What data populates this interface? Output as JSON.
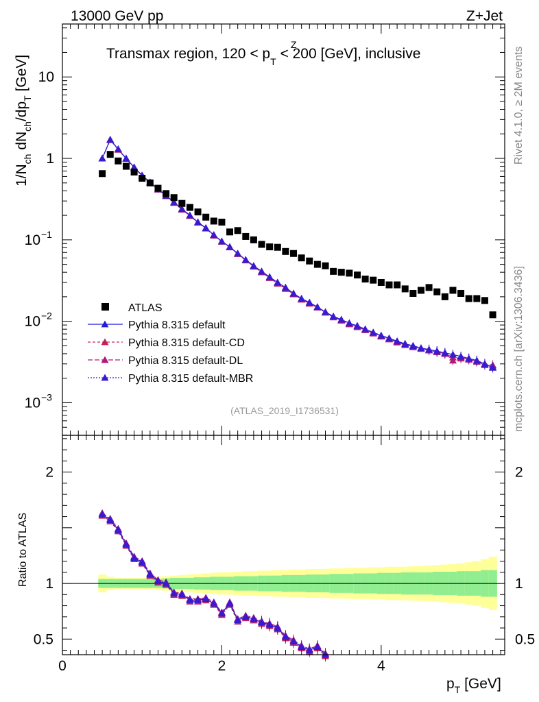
{
  "header": {
    "left": "13000 GeV pp",
    "right": "Z+Jet",
    "title": "Transmax region, 120 < p",
    "title_sup": "Z",
    "title_sub": "T",
    "title_end": " < 200 [GeV], inclusive",
    "analysis_id": "(ATLAS_2019_I1736531)"
  },
  "side_text": {
    "rivet": "Rivet 4.1.0, ≥ 2M events",
    "mcplots": "mcplots.cern.ch [arXiv:1306.3436]"
  },
  "axes": {
    "main_ylabel": "1/N",
    "main_ylabel_sub1": "ch",
    "main_ylabel_mid": " dN",
    "main_ylabel_sub2": "ch",
    "main_ylabel_end": "/dp",
    "main_ylabel_sub3": "T",
    "main_ylabel_unit": " [GeV]",
    "ratio_ylabel": "Ratio to ATLAS",
    "xlabel": "p",
    "xlabel_sub": "T",
    "xlabel_unit": " [GeV]",
    "main_yticks": [
      "10",
      "1",
      "10",
      "10",
      "10"
    ],
    "main_ytick_exps": [
      "",
      "",
      "−1",
      "−2",
      "−3"
    ],
    "ratio_yticks": [
      "2",
      "1",
      "0.5"
    ],
    "ratio_yticks_right": [
      "2",
      "1",
      "0.5"
    ],
    "xticks": [
      "0",
      "2",
      "4"
    ]
  },
  "legend": [
    {
      "label": "ATLAS"
    },
    {
      "label": "Pythia 8.315 default"
    },
    {
      "label": "Pythia 8.315 default-CD"
    },
    {
      "label": "Pythia 8.315 default-DL"
    },
    {
      "label": "Pythia 8.315 default-MBR"
    }
  ],
  "colors": {
    "atlas": "#000000",
    "default": "#1e1ed6",
    "cd": "#c4215a",
    "dl": "#b0187a",
    "mbr": "#3a1ad0",
    "band_inner": "#90ee90",
    "band_outer": "#ffff99"
  },
  "chart_data": {
    "type": "scatter",
    "x_range": [
      0,
      5.55
    ],
    "main_ylim_log10": [
      -3.4,
      1.65
    ],
    "ratio_ylim": [
      0.36,
      2.33
    ],
    "x": [
      0.5,
      0.6,
      0.7,
      0.8,
      0.9,
      1.0,
      1.1,
      1.2,
      1.3,
      1.4,
      1.5,
      1.6,
      1.7,
      1.8,
      1.9,
      2.0,
      2.1,
      2.2,
      2.3,
      2.4,
      2.5,
      2.6,
      2.7,
      2.8,
      2.9,
      3.0,
      3.1,
      3.2,
      3.3,
      3.4,
      3.5,
      3.6,
      3.7,
      3.8,
      3.9,
      4.0,
      4.1,
      4.2,
      4.3,
      4.4,
      4.5,
      4.6,
      4.7,
      4.8,
      4.9,
      5.0,
      5.1,
      5.2,
      5.3,
      5.4
    ],
    "atlas": [
      0.65,
      1.12,
      0.93,
      0.8,
      0.68,
      0.57,
      0.5,
      0.43,
      0.37,
      0.33,
      0.28,
      0.25,
      0.22,
      0.19,
      0.17,
      0.165,
      0.125,
      0.13,
      0.11,
      0.1,
      0.088,
      0.082,
      0.081,
      0.072,
      0.068,
      0.06,
      0.055,
      0.05,
      0.048,
      0.041,
      0.04,
      0.039,
      0.037,
      0.033,
      0.032,
      0.03,
      0.028,
      0.028,
      0.025,
      0.022,
      0.024,
      0.026,
      0.023,
      0.02,
      0.024,
      0.022,
      0.019,
      0.019,
      0.018,
      0.012
    ],
    "series": [
      {
        "name": "Pythia 8.315 default",
        "values": [
          1.0,
          1.7,
          1.3,
          1.0,
          0.78,
          0.62,
          0.51,
          0.42,
          0.35,
          0.29,
          0.24,
          0.2,
          0.165,
          0.14,
          0.115,
          0.096,
          0.082,
          0.068,
          0.057,
          0.048,
          0.041,
          0.035,
          0.03,
          0.026,
          0.022,
          0.019,
          0.017,
          0.015,
          0.013,
          0.0115,
          0.0105,
          0.0095,
          0.0088,
          0.008,
          0.0073,
          0.0067,
          0.0062,
          0.0057,
          0.0053,
          0.005,
          0.0047,
          0.0045,
          0.0043,
          0.0041,
          0.0039,
          0.0037,
          0.0035,
          0.0033,
          0.003,
          0.0027
        ]
      },
      {
        "name": "Pythia 8.315 default-CD",
        "values": [
          1.0,
          1.68,
          1.28,
          0.99,
          0.77,
          0.61,
          0.5,
          0.415,
          0.345,
          0.285,
          0.235,
          0.197,
          0.163,
          0.138,
          0.113,
          0.095,
          0.081,
          0.067,
          0.056,
          0.047,
          0.04,
          0.034,
          0.029,
          0.025,
          0.0215,
          0.0185,
          0.0165,
          0.0148,
          0.0128,
          0.0112,
          0.0102,
          0.0092,
          0.0085,
          0.0078,
          0.0071,
          0.0065,
          0.006,
          0.0055,
          0.0051,
          0.0048,
          0.0046,
          0.0044,
          0.0042,
          0.004,
          0.0036,
          0.0035,
          0.0034,
          0.0032,
          0.0029,
          0.0028
        ]
      },
      {
        "name": "Pythia 8.315 default-DL",
        "values": [
          1.0,
          1.69,
          1.29,
          0.99,
          0.775,
          0.615,
          0.505,
          0.418,
          0.348,
          0.288,
          0.238,
          0.199,
          0.164,
          0.139,
          0.114,
          0.0955,
          0.0815,
          0.0675,
          0.0565,
          0.0475,
          0.0405,
          0.0345,
          0.0295,
          0.0255,
          0.0218,
          0.0188,
          0.0168,
          0.0149,
          0.0129,
          0.0113,
          0.0103,
          0.0093,
          0.0086,
          0.0079,
          0.0072,
          0.0066,
          0.0061,
          0.0056,
          0.0052,
          0.0049,
          0.0046,
          0.0044,
          0.0042,
          0.004,
          0.0033,
          0.0036,
          0.0034,
          0.0032,
          0.003,
          0.0029
        ]
      },
      {
        "name": "Pythia 8.315 default-MBR",
        "values": [
          1.0,
          1.7,
          1.3,
          1.0,
          0.78,
          0.62,
          0.51,
          0.42,
          0.35,
          0.29,
          0.24,
          0.2,
          0.165,
          0.14,
          0.115,
          0.096,
          0.082,
          0.068,
          0.057,
          0.048,
          0.041,
          0.035,
          0.03,
          0.026,
          0.022,
          0.019,
          0.017,
          0.015,
          0.013,
          0.0115,
          0.0105,
          0.0095,
          0.0088,
          0.008,
          0.0073,
          0.0067,
          0.0062,
          0.0057,
          0.0053,
          0.005,
          0.0047,
          0.0045,
          0.0043,
          0.0041,
          0.0039,
          0.0037,
          0.0035,
          0.0033,
          0.003,
          0.0027
        ]
      }
    ],
    "ratio": {
      "x": [
        0.5,
        0.6,
        0.7,
        0.8,
        0.9,
        1.0,
        1.1,
        1.2,
        1.3,
        1.4,
        1.5,
        1.6,
        1.7,
        1.8,
        1.9,
        2.0,
        2.1,
        2.2,
        2.3,
        2.4,
        2.5,
        2.6,
        2.7,
        2.8,
        2.9,
        3.0,
        3.1,
        3.2,
        3.3
      ],
      "values": [
        1.62,
        1.57,
        1.48,
        1.35,
        1.23,
        1.19,
        1.08,
        1.02,
        1.0,
        0.91,
        0.9,
        0.85,
        0.85,
        0.86,
        0.82,
        0.73,
        0.82,
        0.67,
        0.7,
        0.68,
        0.65,
        0.63,
        0.6,
        0.52,
        0.48,
        0.43,
        0.4,
        0.43,
        0.36
      ]
    },
    "band_inner": [
      0.04,
      0.04,
      0.04,
      0.04,
      0.04,
      0.04,
      0.04,
      0.04,
      0.045,
      0.05,
      0.05,
      0.05,
      0.055,
      0.055,
      0.06,
      0.06,
      0.06,
      0.065,
      0.065,
      0.065,
      0.07,
      0.07,
      0.07,
      0.075,
      0.075,
      0.075,
      0.08,
      0.08,
      0.08,
      0.085,
      0.085,
      0.085,
      0.09,
      0.09,
      0.09,
      0.095,
      0.095,
      0.095,
      0.1,
      0.1,
      0.1,
      0.1,
      0.105,
      0.105,
      0.105,
      0.11,
      0.11,
      0.11,
      0.12,
      0.12
    ],
    "band_outer": [
      0.08,
      0.06,
      0.05,
      0.05,
      0.05,
      0.05,
      0.055,
      0.06,
      0.065,
      0.07,
      0.075,
      0.08,
      0.085,
      0.09,
      0.095,
      0.1,
      0.1,
      0.105,
      0.11,
      0.11,
      0.115,
      0.115,
      0.12,
      0.12,
      0.125,
      0.125,
      0.13,
      0.13,
      0.13,
      0.135,
      0.135,
      0.14,
      0.14,
      0.14,
      0.145,
      0.145,
      0.15,
      0.15,
      0.15,
      0.155,
      0.155,
      0.16,
      0.165,
      0.17,
      0.175,
      0.18,
      0.19,
      0.2,
      0.22,
      0.24
    ]
  }
}
